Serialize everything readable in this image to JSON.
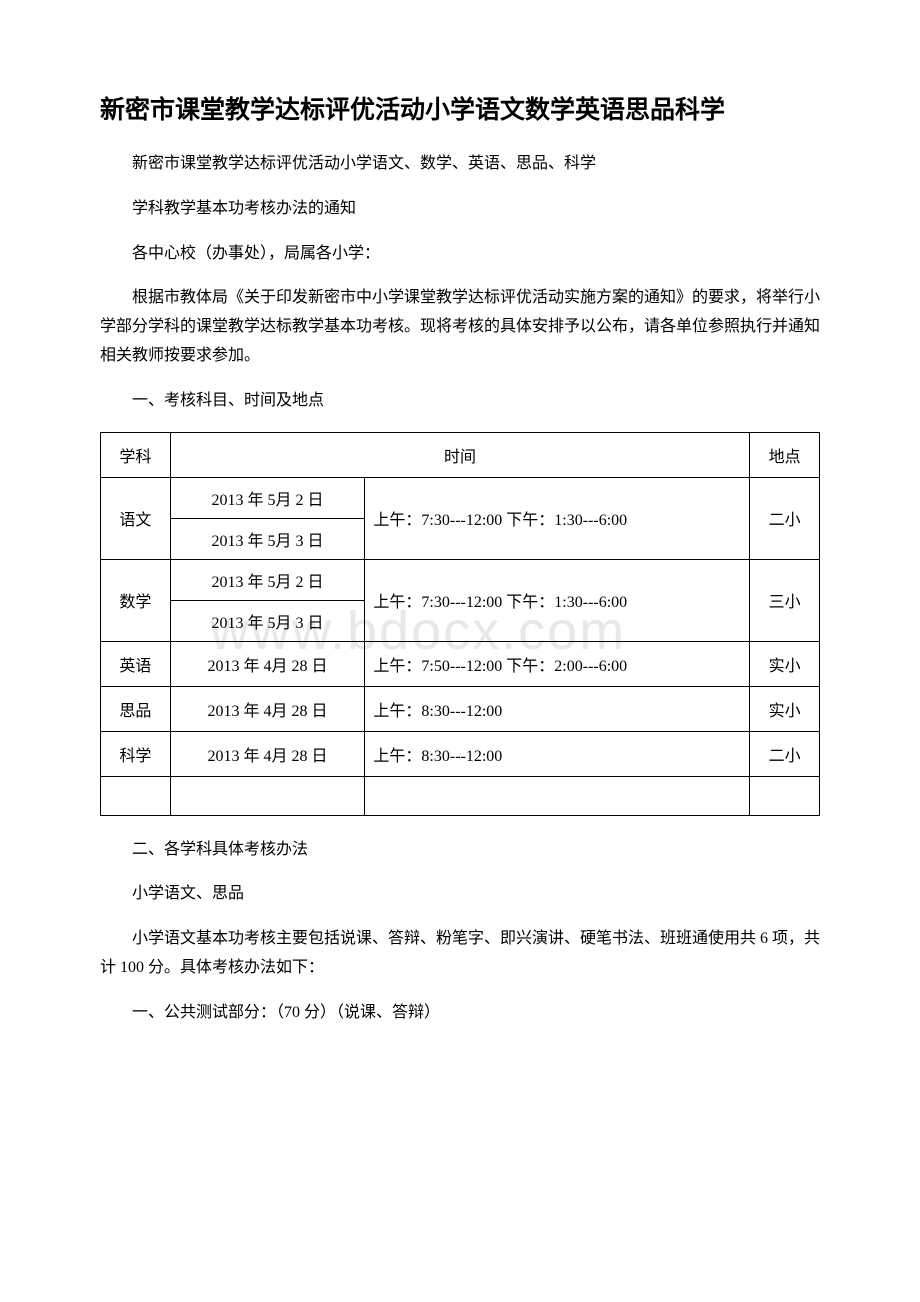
{
  "watermark": "www.bdocx.com",
  "title": "新密市课堂教学达标评优活动小学语文数学英语思品科学",
  "p1": "新密市课堂教学达标评优活动小学语文、数学、英语、思品、科学",
  "p2": "学科教学基本功考核办法的通知",
  "p3": "各中心校（办事处），局属各小学：",
  "p4": "根据市教体局《关于印发新密市中小学课堂教学达标评优活动实施方案的通知》的要求，将举行小学部分学科的课堂教学达标教学基本功考核。现将考核的具体安排予以公布，请各单位参照执行并通知相关教师按要求参加。",
  "p5": "一、考核科目、时间及地点",
  "table": {
    "header": {
      "col1": "学科",
      "col2": "时间",
      "col3": "地点"
    },
    "rows": [
      {
        "subject": "语文",
        "date1": "2013 年 5月 2 日",
        "date2": "2013 年 5月 3 日",
        "time": "上午：7:30---12:00 下午：1:30---6:00",
        "place": "二小"
      },
      {
        "subject": "数学",
        "date1": "2013 年 5月 2 日",
        "date2": "2013 年 5月 3 日",
        "time": "上午：7:30---12:00 下午：1:30---6:00",
        "place": "三小"
      },
      {
        "subject": "英语",
        "date1": "2013 年 4月 28 日",
        "time": "上午：7:50---12:00 下午：2:00---6:00",
        "place": "实小"
      },
      {
        "subject": "思品",
        "date1": "2013 年 4月 28 日",
        "time": "上午：8:30---12:00",
        "place": "实小"
      },
      {
        "subject": "科学",
        "date1": "2013 年 4月 28 日",
        "time": "上午：8:30---12:00",
        "place": "二小"
      }
    ]
  },
  "p6": "二、各学科具体考核办法",
  "p7": "小学语文、思品",
  "p8": "小学语文基本功考核主要包括说课、答辩、粉笔字、即兴演讲、硬笔书法、班班通使用共 6 项，共计 100 分。具体考核办法如下：",
  "p9": "一、公共测试部分：（70 分）（说课、答辩）",
  "colors": {
    "text": "#000000",
    "background": "#ffffff",
    "border": "#000000",
    "watermark": "#e8e8e8"
  }
}
